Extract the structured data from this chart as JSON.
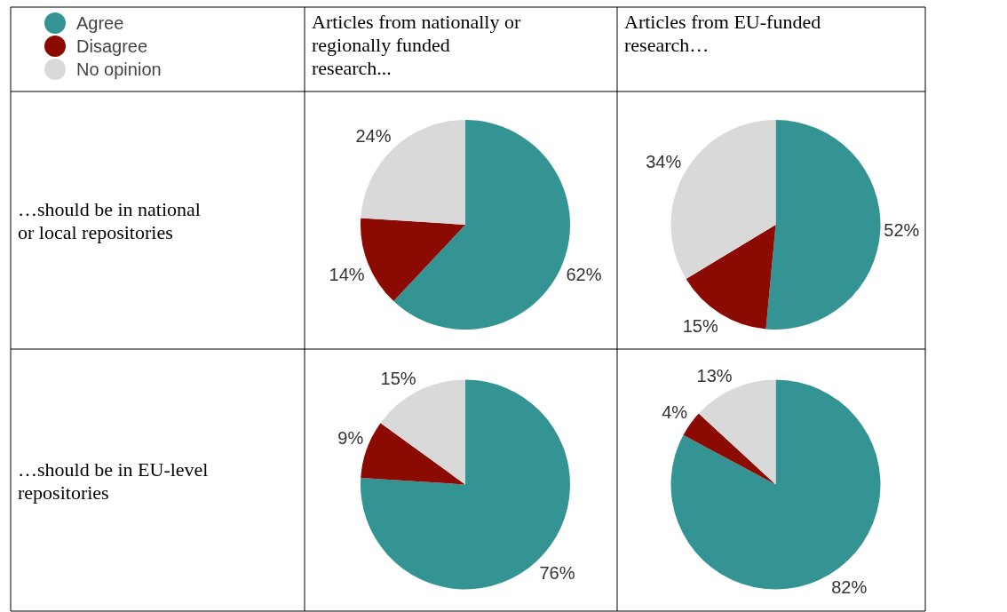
{
  "chart_data": [
    {
      "type": "pie",
      "title": "Articles from nationally or regionally funded research...",
      "ylabel": "…should be in national or local repositories",
      "categories": [
        "Agree",
        "Disagree",
        "No opinion"
      ],
      "values": [
        62,
        14,
        24
      ],
      "value_labels": [
        "62%",
        "14%",
        "24%"
      ],
      "colors": [
        "#339493",
        "#8b0a02",
        "#d9d9d9"
      ],
      "legend": "top left"
    },
    {
      "type": "pie",
      "title": "Articles from EU-funded research…",
      "categories": [
        null,
        null,
        null
      ],
      "values": [
        52,
        15,
        34
      ],
      "value_labels": [
        "52%",
        "15%",
        "34%"
      ],
      "colors": [
        "#339493",
        "#8b0a02",
        "#d9d9d9"
      ]
    },
    {
      "type": "pie",
      "ylabel": "…should be in EU-level repositories",
      "categories": [
        null,
        null,
        null
      ],
      "values": [
        76,
        9,
        15
      ],
      "value_labels": [
        "76%",
        "9%",
        "15%"
      ],
      "colors": [
        "#339493",
        "#8b0a02",
        "#d9d9d9"
      ]
    },
    {
      "type": "pie",
      "categories": [
        null,
        null,
        null
      ],
      "values": [
        82,
        4,
        13
      ],
      "value_labels": [
        "82%",
        "4%",
        "13%"
      ],
      "colors": [
        "#339493",
        "#8b0a02",
        "#d9d9d9"
      ]
    }
  ]
}
